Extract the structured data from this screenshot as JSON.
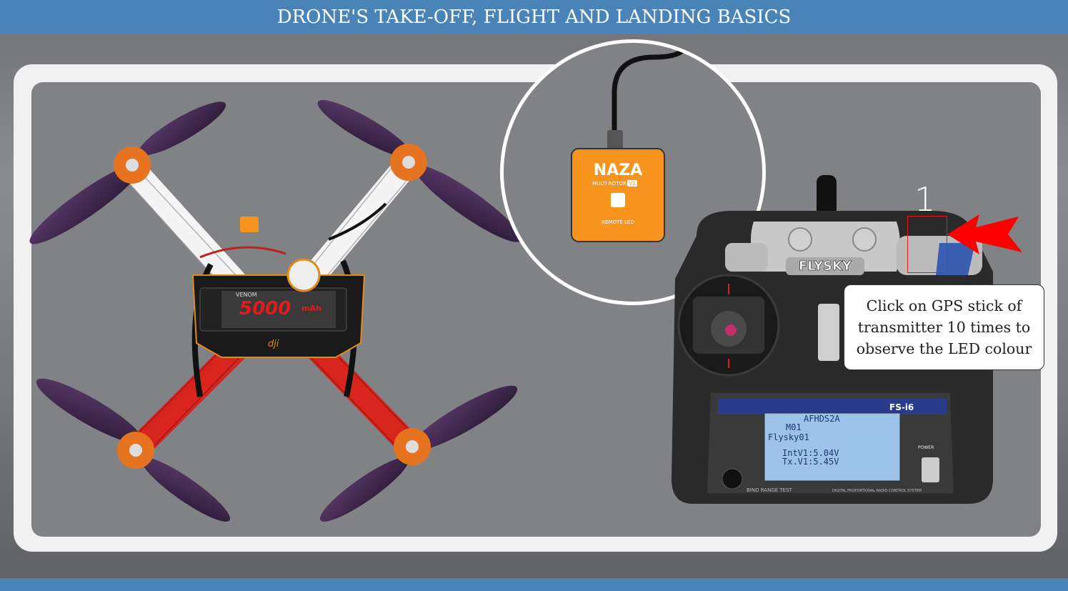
{
  "header": {
    "title": "DRONE'S TAKE-OFF, FLIGHT AND LANDING BASICS"
  },
  "led_module": {
    "brand": "NAZA",
    "subtitle": "MULTI ROTOR",
    "version": "V2",
    "label": "REMOTE LED"
  },
  "drone": {
    "battery_brand": "VENOM",
    "battery_capacity": "5000",
    "battery_unit": "mAh",
    "frame_logo": "dji"
  },
  "transmitter": {
    "brand": "FLYSKY",
    "model": "FS-i6",
    "screen_line1": "AFHDS2A",
    "screen_line2": "M01",
    "screen_line3": "Flysky01",
    "screen_line4": "IntV1:5.04V",
    "screen_line5": "Tx.V1:5.45V",
    "footer_left": "BIND RANGE TEST",
    "footer_right": "DIGITAL PROPORTIONAL RADIO CONTROL SYSTEM",
    "power_label": "POWER"
  },
  "step": {
    "number": "1"
  },
  "tooltip": {
    "text": "Click on GPS stick of transmitter 10 times to observe the LED colour"
  },
  "colors": {
    "header_bg": "#4a83b8",
    "arrow": "#ff0000",
    "led_module": "#f7941d",
    "highlight_box": "#e01b1b"
  }
}
